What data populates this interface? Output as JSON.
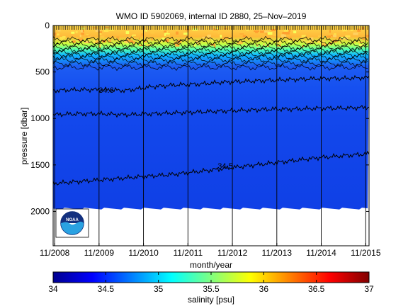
{
  "chart_data": [
    {
      "type": "heatmap",
      "title": "WMO ID 5902069, internal ID 2880, 25–Nov–2019",
      "xlabel": "month/year",
      "ylabel": "pressure [dbar]",
      "x_tick_labels": [
        "11/2008",
        "11/2009",
        "11/2010",
        "11/2011",
        "11/2012",
        "11/2013",
        "11/2014",
        "11/2015"
      ],
      "y_tick_labels": [
        "0",
        "500",
        "1000",
        "1500",
        "2000"
      ],
      "y_ticks": [
        0,
        500,
        1000,
        1500,
        2000
      ],
      "ylim": [
        2370,
        0
      ],
      "xlim_months_from_11_2008": [
        -0.4,
        84.9
      ],
      "profile_bottom_dbar": 1960,
      "contour_labels": [
        "34.6",
        "34.5"
      ],
      "contours": [
        {
          "label": "34.6",
          "depth_dbar": [
            700,
            690,
            690,
            700,
            660,
            640,
            630,
            610,
            600,
            590,
            580,
            570,
            570,
            560
          ]
        },
        {
          "label": "34.5",
          "depth_dbar": [
            960,
            950,
            950,
            960,
            950,
            940,
            930,
            920,
            910,
            900,
            900,
            890,
            890,
            880
          ]
        },
        {
          "label": "34.5",
          "depth_dbar": [
            1700,
            1680,
            1660,
            1640,
            1620,
            1600,
            1570,
            1540,
            1510,
            1480,
            1450,
            1420,
            1400,
            1380
          ]
        }
      ],
      "grid": false
    },
    {
      "type": "colorbar",
      "xlabel": "salinity [psu]",
      "range": [
        34,
        37
      ],
      "ticks": [
        34,
        34.5,
        35,
        35.5,
        36,
        36.5,
        37
      ],
      "tick_labels": [
        "34",
        "34.5",
        "35",
        "35.5",
        "36",
        "36.5",
        "37"
      ],
      "colormap": "jet",
      "colors": [
        "#00008f",
        "#0000ff",
        "#00ffff",
        "#ffff00",
        "#ff0000",
        "#800000"
      ]
    }
  ],
  "logo": {
    "text": "NOAA"
  }
}
